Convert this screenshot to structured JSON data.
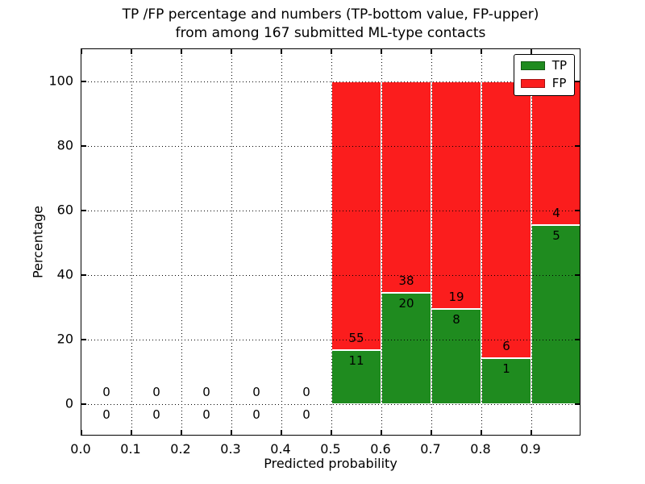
{
  "chart_data": {
    "type": "bar",
    "stacked": true,
    "title_lines": [
      "TP /FP percentage and numbers (TP-bottom value, FP-upper)",
      "from among 167 submitted ML-type contacts"
    ],
    "xlabel": "Predicted probability",
    "ylabel": "Percentage",
    "total_contacts": 167,
    "xlim": [
      0.0,
      1.0
    ],
    "ylim": [
      -10,
      110
    ],
    "bin_width": 0.1,
    "bin_starts": [
      0.0,
      0.1,
      0.2,
      0.3,
      0.4,
      0.5,
      0.6,
      0.7,
      0.8,
      0.9
    ],
    "xtick_labels": [
      "0.0",
      "0.1",
      "0.2",
      "0.3",
      "0.4",
      "0.5",
      "0.6",
      "0.7",
      "0.8",
      "0.9"
    ],
    "ytick_values": [
      0,
      20,
      40,
      60,
      80,
      100
    ],
    "ytick_labels": [
      "0",
      "20",
      "40",
      "60",
      "80",
      "100"
    ],
    "grid": "dotted black, both axes, drawn over bars",
    "legend_position": "upper right",
    "bar_edge_color": "#ffffff",
    "series": [
      {
        "name": "TP",
        "color": "#1f8b1f",
        "counts": [
          0,
          0,
          0,
          0,
          0,
          11,
          20,
          8,
          1,
          5
        ]
      },
      {
        "name": "FP",
        "color": "#fb1d1d",
        "counts": [
          0,
          0,
          0,
          0,
          0,
          55,
          38,
          19,
          6,
          4
        ]
      }
    ],
    "tp_percent": [
      null,
      null,
      null,
      null,
      null,
      16.7,
      34.5,
      29.6,
      14.3,
      55.6
    ],
    "fp_percent": [
      null,
      null,
      null,
      null,
      null,
      83.3,
      65.5,
      70.4,
      85.7,
      44.4
    ]
  }
}
